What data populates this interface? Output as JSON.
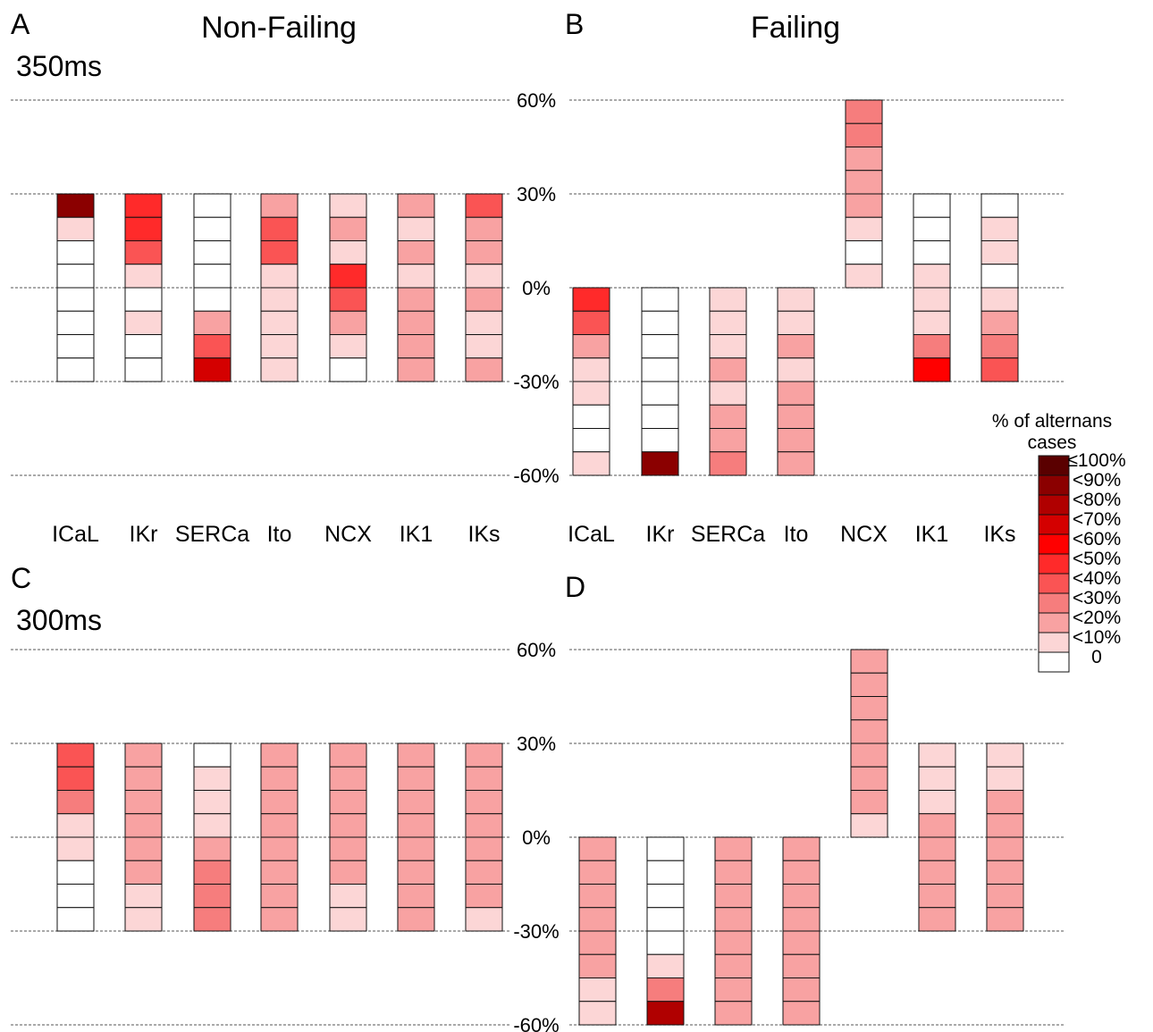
{
  "chart_data": [
    {
      "type": "heatmap",
      "panel": "A",
      "title": "Non-Failing",
      "condition": "350ms",
      "categories": [
        "ICaL",
        "IKr",
        "SERCa",
        "Ito",
        "NCX",
        "IK1",
        "IKs"
      ],
      "y_ticks": [
        "60%",
        "30%",
        "0%",
        "-30%",
        "-60%"
      ],
      "cell_step_percent": 7.5,
      "columns": [
        {
          "name": "ICaL",
          "top": 30,
          "levels": [
            9,
            1,
            0,
            0,
            0,
            0,
            0,
            0
          ]
        },
        {
          "name": "IKr",
          "top": 30,
          "levels": [
            5,
            5,
            4,
            1,
            0,
            1,
            0,
            0
          ]
        },
        {
          "name": "SERCa",
          "top": 30,
          "levels": [
            0,
            0,
            0,
            0,
            0,
            2,
            4,
            7
          ]
        },
        {
          "name": "Ito",
          "top": 30,
          "levels": [
            2,
            4,
            4,
            1,
            1,
            1,
            1,
            1
          ]
        },
        {
          "name": "NCX",
          "top": 30,
          "levels": [
            1,
            2,
            1,
            5,
            4,
            2,
            1,
            0
          ]
        },
        {
          "name": "IK1",
          "top": 30,
          "levels": [
            2,
            1,
            2,
            1,
            2,
            2,
            2,
            2
          ]
        },
        {
          "name": "IKs",
          "top": 30,
          "levels": [
            4,
            2,
            2,
            1,
            2,
            1,
            1,
            2
          ]
        }
      ]
    },
    {
      "type": "heatmap",
      "panel": "B",
      "title": "Failing",
      "condition": "",
      "categories": [
        "ICaL",
        "IKr",
        "SERCa",
        "Ito",
        "NCX",
        "IK1",
        "IKs"
      ],
      "y_ticks": [],
      "cell_step_percent": 7.5,
      "columns": [
        {
          "name": "ICaL",
          "top": 0,
          "levels": [
            5,
            4,
            2,
            1,
            1,
            0,
            0,
            1
          ]
        },
        {
          "name": "IKr",
          "top": 0,
          "levels": [
            0,
            0,
            0,
            0,
            0,
            0,
            0,
            9
          ]
        },
        {
          "name": "SERCa",
          "top": 0,
          "levels": [
            1,
            1,
            1,
            2,
            1,
            2,
            2,
            3
          ]
        },
        {
          "name": "Ito",
          "top": 0,
          "levels": [
            1,
            1,
            2,
            1,
            2,
            2,
            2,
            2
          ]
        },
        {
          "name": "NCX",
          "top": 60,
          "levels": [
            3,
            3,
            2,
            2,
            2,
            1,
            0,
            1
          ]
        },
        {
          "name": "IK1",
          "top": 30,
          "levels": [
            0,
            0,
            0,
            1,
            1,
            1,
            3,
            6
          ]
        },
        {
          "name": "IKs",
          "top": 30,
          "levels": [
            0,
            1,
            1,
            0,
            1,
            2,
            3,
            4
          ]
        }
      ]
    },
    {
      "type": "heatmap",
      "panel": "C",
      "title": "",
      "condition": "300ms",
      "categories": [],
      "y_ticks": [
        "60%",
        "30%",
        "0%",
        "-30%",
        "-60%"
      ],
      "cell_step_percent": 7.5,
      "columns": [
        {
          "name": "ICaL",
          "top": 30,
          "levels": [
            4,
            4,
            3,
            1,
            1,
            0,
            0,
            0
          ]
        },
        {
          "name": "IKr",
          "top": 30,
          "levels": [
            2,
            2,
            2,
            2,
            2,
            2,
            1,
            1
          ]
        },
        {
          "name": "SERCa",
          "top": 30,
          "levels": [
            0,
            1,
            1,
            1,
            2,
            3,
            3,
            3
          ]
        },
        {
          "name": "Ito",
          "top": 30,
          "levels": [
            2,
            2,
            2,
            2,
            2,
            2,
            2,
            2
          ]
        },
        {
          "name": "NCX",
          "top": 30,
          "levels": [
            2,
            2,
            2,
            2,
            2,
            2,
            1,
            1
          ]
        },
        {
          "name": "IK1",
          "top": 30,
          "levels": [
            2,
            2,
            2,
            2,
            2,
            2,
            2,
            2
          ]
        },
        {
          "name": "IKs",
          "top": 30,
          "levels": [
            2,
            2,
            2,
            2,
            2,
            2,
            2,
            1
          ]
        }
      ]
    },
    {
      "type": "heatmap",
      "panel": "D",
      "title": "",
      "condition": "",
      "categories": [],
      "y_ticks": [],
      "cell_step_percent": 7.5,
      "columns": [
        {
          "name": "ICaL",
          "top": 0,
          "levels": [
            2,
            2,
            2,
            2,
            2,
            2,
            1,
            1
          ]
        },
        {
          "name": "IKr",
          "top": 0,
          "levels": [
            0,
            0,
            0,
            0,
            0,
            1,
            3,
            8
          ]
        },
        {
          "name": "SERCa",
          "top": 0,
          "levels": [
            2,
            2,
            2,
            2,
            2,
            2,
            2,
            2
          ]
        },
        {
          "name": "Ito",
          "top": 0,
          "levels": [
            2,
            2,
            2,
            2,
            2,
            2,
            2,
            2
          ]
        },
        {
          "name": "NCX",
          "top": 60,
          "levels": [
            2,
            2,
            2,
            2,
            2,
            2,
            2,
            1
          ]
        },
        {
          "name": "IK1",
          "top": 30,
          "levels": [
            1,
            1,
            1,
            2,
            2,
            2,
            2,
            2
          ]
        },
        {
          "name": "IKs",
          "top": 30,
          "levels": [
            1,
            1,
            2,
            2,
            2,
            2,
            2,
            2
          ]
        }
      ]
    }
  ],
  "legend": {
    "title_line1": "% of alternans cases",
    "title_line2": "",
    "labels": [
      "≤100%",
      "<90%",
      "<80%",
      "<70%",
      "<60%",
      "<50%",
      "<40%",
      "<30%",
      "<20%",
      "<10%",
      "0"
    ],
    "colors": [
      "#5a0000",
      "#8b0000",
      "#b00000",
      "#d40000",
      "#ff0000",
      "#ff2a2a",
      "#fa5454",
      "#f67d7d",
      "#f8a2a2",
      "#fcd6d6",
      "#ffffff"
    ]
  }
}
